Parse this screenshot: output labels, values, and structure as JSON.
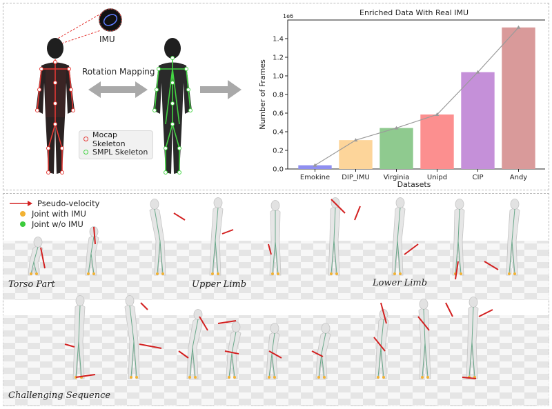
{
  "top": {
    "imu_label": "IMU",
    "mapping_label": "Rotation Mapping",
    "legend": [
      {
        "label": "Mocap Skeleton",
        "color": "#e53935"
      },
      {
        "label": "SMPL Skeleton",
        "color": "#43d443"
      }
    ]
  },
  "chart_data": {
    "type": "bar",
    "title": "Enriched Data With Real IMU",
    "xlabel": "Datasets",
    "ylabel": "Number of Frames",
    "scale_label": "1e6",
    "categories": [
      "Emokine",
      "DIP_IMU",
      "Virginia",
      "Unipd",
      "CIP",
      "Andy"
    ],
    "values": [
      40000,
      310000,
      440000,
      585000,
      1040000,
      1520000
    ],
    "colors": [
      "#8f8ff0",
      "#fdd59a",
      "#8fca8f",
      "#fc8f8f",
      "#c590d9",
      "#d99a9a"
    ],
    "ylim": [
      0,
      1600000
    ],
    "yticks": [
      "0.0",
      "0.2",
      "0.4",
      "0.6",
      "0.8",
      "1.0",
      "1.2",
      "1.4"
    ],
    "trend_line": true,
    "grid": false
  },
  "bottom": {
    "legend": [
      {
        "label": "Pseudo-velocity",
        "color": "#d32020"
      },
      {
        "label": "Joint with IMU",
        "color": "#f2b233"
      },
      {
        "label": "Joint w/o IMU",
        "color": "#3ccb3c"
      }
    ],
    "captions": {
      "torso": "Torso Part",
      "upper": "Upper Limb",
      "lower": "Lower Limb",
      "sequence": "Challenging Sequence"
    }
  }
}
